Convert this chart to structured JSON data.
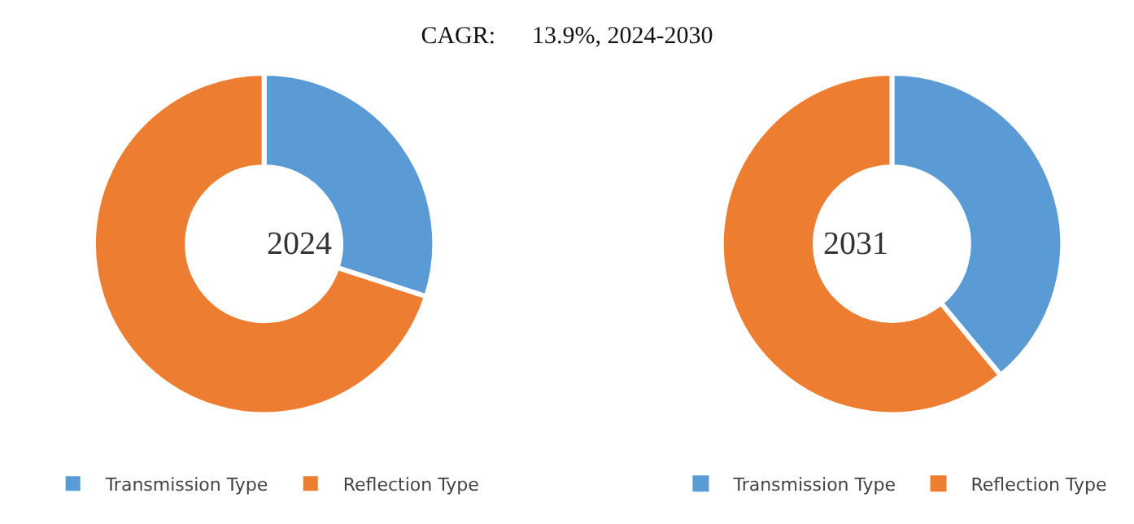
{
  "chart_data": [
    {
      "type": "donut",
      "title": "CAGR:      13.9%, 2024-2030",
      "categories": [
        "Transmission Type",
        "Reflection Type"
      ],
      "values": [
        30,
        70
      ],
      "colors": [
        "#5b9bd5",
        "#ed7d31"
      ],
      "annotations": [
        "2024"
      ],
      "legend": "bottom"
    },
    {
      "type": "donut",
      "categories": [
        "Transmission Type",
        "Reflection Type"
      ],
      "values": [
        39,
        61
      ],
      "colors": [
        "#5b9bd5",
        "#ed7d31"
      ],
      "annotations": [
        "2031"
      ],
      "legend": "bottom"
    }
  ]
}
